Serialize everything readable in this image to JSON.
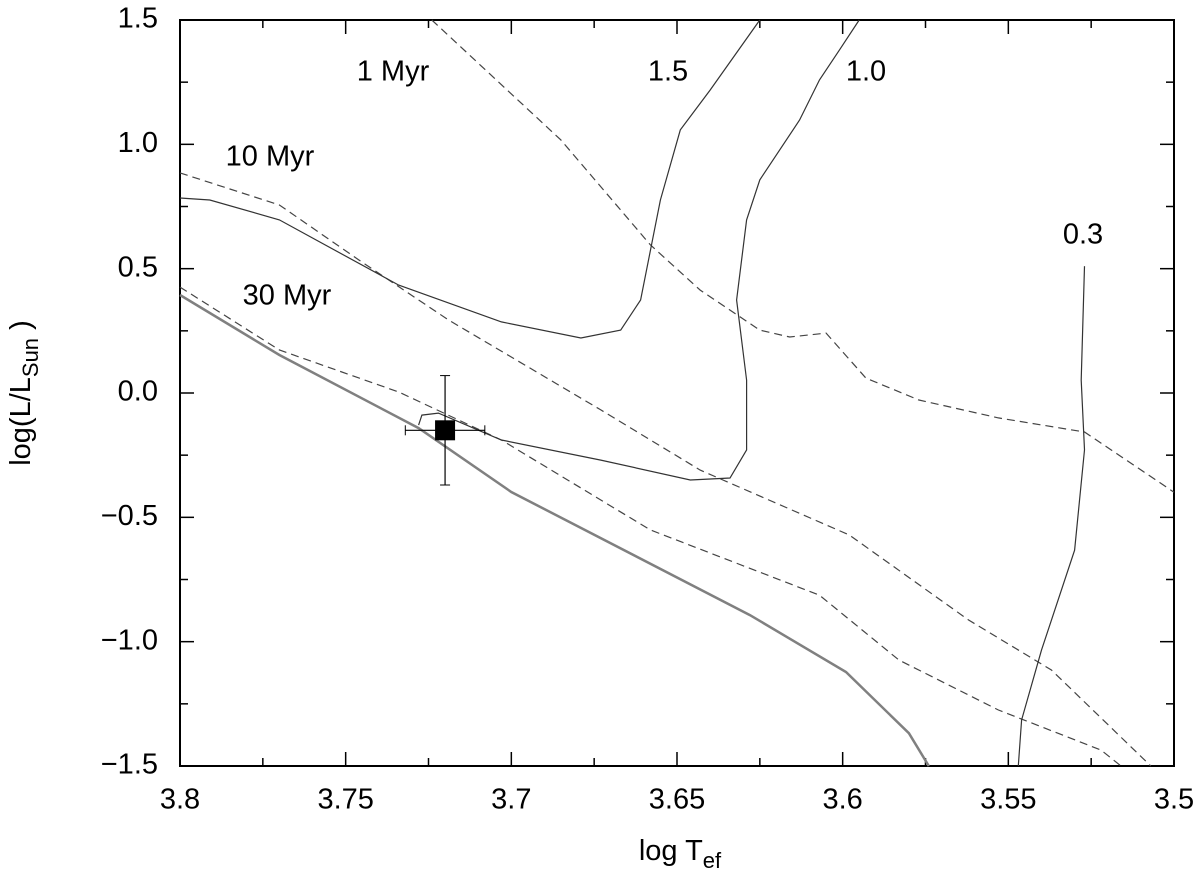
{
  "chart_data": {
    "type": "line",
    "xlabel": [
      "log T",
      "ef"
    ],
    "ylabel": [
      "log(L/L",
      "Sun",
      " )"
    ],
    "xlim": [
      3.8,
      3.5
    ],
    "ylim": [
      -1.5,
      1.5
    ],
    "xticks": [
      3.8,
      3.75,
      3.7,
      3.65,
      3.6,
      3.55,
      3.5
    ],
    "xticks_minor": [
      3.775,
      3.725,
      3.675,
      3.625,
      3.575,
      3.525
    ],
    "yticks": [
      {
        "value": -1.5,
        "label": "−1.5"
      },
      {
        "value": -1,
        "label": "−1.0"
      },
      {
        "value": -0.5,
        "label": "−0.5"
      },
      {
        "value": 0,
        "label": "0.0"
      },
      0.5,
      {
        "value": 1,
        "label": "1.0"
      },
      1.5
    ],
    "yticks_minor": [
      -1.25,
      -0.75,
      -0.25,
      0.25,
      0.75,
      1.25
    ],
    "series": [
      {
        "name": "1 Myr",
        "color": "#444444",
        "dash": true,
        "x": [
          3.724,
          3.685,
          3.658,
          3.643,
          3.625,
          3.616,
          3.605,
          3.593,
          3.577,
          3.553,
          3.527,
          3.5
        ],
        "values": [
          1.5,
          1.017,
          0.595,
          0.414,
          0.253,
          0.225,
          0.241,
          0.06,
          -0.028,
          -0.1,
          -0.157,
          -0.399
        ]
      },
      {
        "name": "10 Myr",
        "color": "#444444",
        "dash": true,
        "x": [
          3.8,
          3.77,
          3.746,
          3.719,
          3.673,
          3.643,
          3.598,
          3.562,
          3.537,
          3.507
        ],
        "values": [
          0.885,
          0.756,
          0.535,
          0.294,
          -0.068,
          -0.31,
          -0.571,
          -0.913,
          -1.114,
          -1.5
        ]
      },
      {
        "name": "30 Myr",
        "color": "#444444",
        "dash": true,
        "x": [
          3.8,
          3.77,
          3.734,
          3.703,
          3.658,
          3.607,
          3.583,
          3.553,
          3.522,
          3.516
        ],
        "values": [
          0.426,
          0.173,
          0.004,
          -0.189,
          -0.551,
          -0.813,
          -1.074,
          -1.275,
          -1.436,
          -1.5
        ]
      },
      {
        "color": "#808080",
        "dash": false,
        "thick": true,
        "x": [
          3.8,
          3.77,
          3.728,
          3.7,
          3.628,
          3.599,
          3.58,
          3.574
        ],
        "values": [
          0.394,
          0.153,
          -0.141,
          -0.398,
          -0.893,
          -1.122,
          -1.368,
          -1.5
        ]
      },
      {
        "name": "1.5",
        "color": "#333333",
        "dash": false,
        "x": [
          3.8,
          3.791,
          3.77,
          3.734,
          3.703,
          3.679,
          3.667,
          3.661,
          3.658,
          3.655,
          3.649,
          3.64,
          3.625
        ],
        "values": [
          0.784,
          0.776,
          0.696,
          0.434,
          0.286,
          0.221,
          0.253,
          0.374,
          0.575,
          0.776,
          1.058,
          1.218,
          1.5
        ]
      },
      {
        "name": "1.0",
        "color": "#333333",
        "dash": false,
        "x": [
          3.728,
          3.727,
          3.722,
          3.703,
          3.673,
          3.646,
          3.634,
          3.629,
          3.629,
          3.632,
          3.629,
          3.625,
          3.613,
          3.607,
          3.601,
          3.595
        ],
        "values": [
          -0.129,
          -0.089,
          -0.081,
          -0.189,
          -0.27,
          -0.35,
          -0.342,
          -0.229,
          0.052,
          0.374,
          0.696,
          0.857,
          1.098,
          1.259,
          1.379,
          1.5
        ]
      },
      {
        "name": "0.3",
        "color": "#333333",
        "dash": false,
        "x": [
          3.527,
          3.528,
          3.527,
          3.53,
          3.54,
          3.546,
          3.547
        ],
        "values": [
          0.51,
          0.052,
          -0.229,
          -0.632,
          -1.034,
          -1.315,
          -1.5
        ]
      }
    ],
    "point": {
      "x": 3.72,
      "y": -0.15,
      "xerr": 0.012,
      "yerr": 0.22,
      "color": "#000000"
    }
  }
}
